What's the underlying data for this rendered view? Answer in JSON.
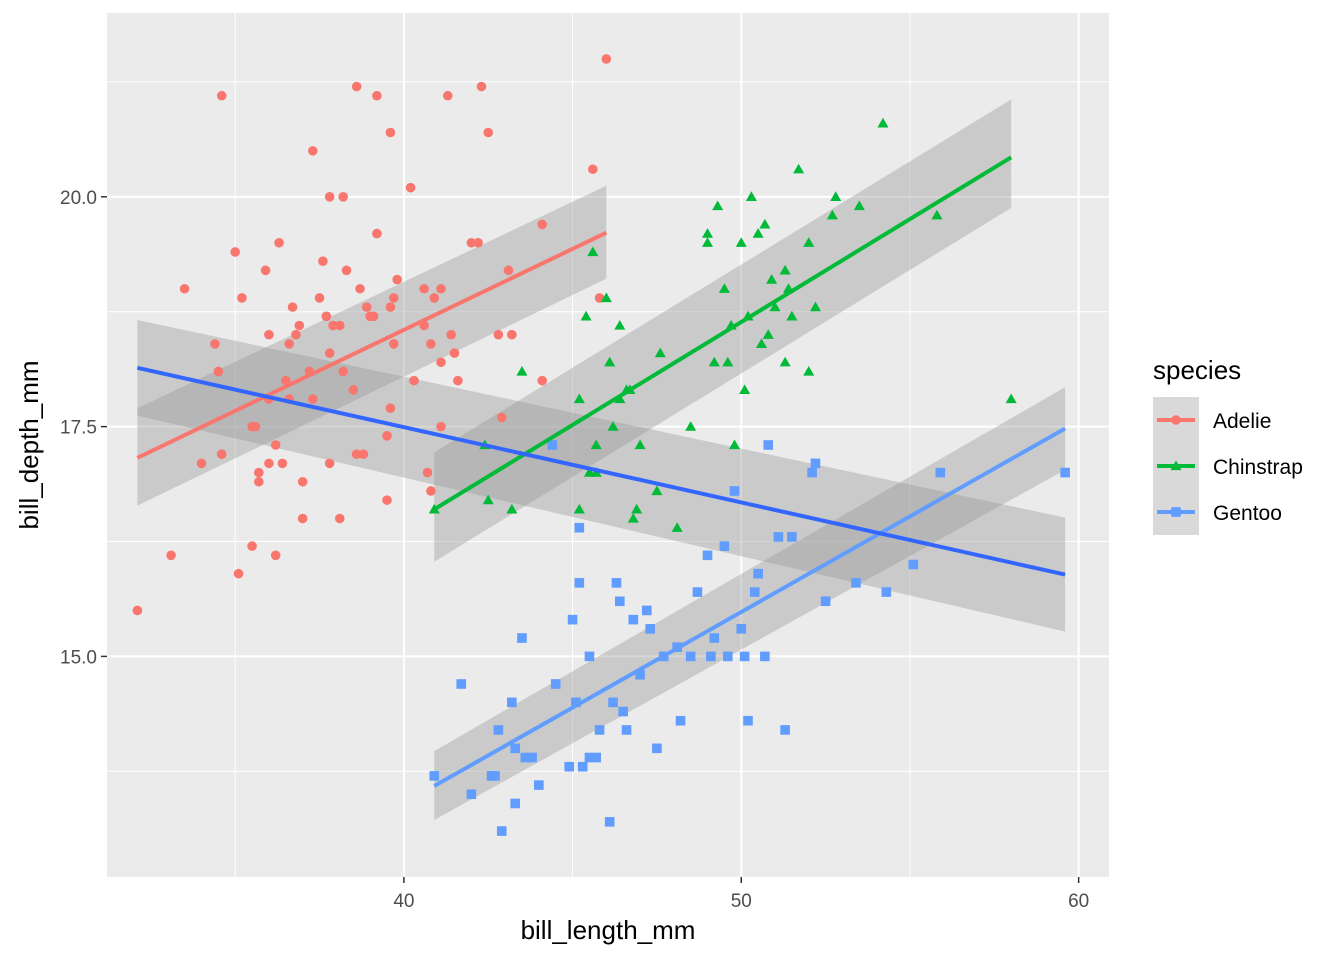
{
  "chart_data": {
    "type": "scatter",
    "xlabel": "bill_length_mm",
    "ylabel": "bill_depth_mm",
    "xlim": [
      31.2,
      60.9
    ],
    "ylim": [
      12.6,
      22.0
    ],
    "x_ticks": [
      40,
      50,
      60
    ],
    "x_tick_labels": [
      "40",
      "50",
      "60"
    ],
    "y_ticks": [
      15.0,
      17.5,
      20.0
    ],
    "y_tick_labels": [
      "15.0",
      "17.5",
      "20.0"
    ],
    "x_minor_ticks": [
      35,
      45,
      55
    ],
    "y_minor_ticks": [
      13.75,
      16.25,
      18.75,
      21.25
    ],
    "grid": true,
    "legend": {
      "title": "species",
      "position": "right"
    },
    "series": [
      {
        "name": "Adelie",
        "color": "#F8766D",
        "marker": "circle",
        "fit": {
          "x": [
            32.1,
            46.0
          ],
          "y": [
            17.16,
            19.61
          ],
          "ci_low": [
            16.64,
            19.11
          ],
          "ci_high": [
            17.7,
            20.12
          ]
        },
        "points": [
          [
            32.1,
            15.5
          ],
          [
            33.1,
            16.1
          ],
          [
            33.5,
            19.0
          ],
          [
            34.0,
            17.1
          ],
          [
            34.4,
            18.4
          ],
          [
            34.5,
            18.1
          ],
          [
            34.6,
            21.1
          ],
          [
            34.6,
            17.2
          ],
          [
            35.0,
            19.4
          ],
          [
            35.1,
            15.9
          ],
          [
            35.2,
            18.9
          ],
          [
            35.5,
            17.5
          ],
          [
            35.5,
            16.2
          ],
          [
            35.6,
            17.5
          ],
          [
            35.7,
            16.9
          ],
          [
            35.7,
            17.0
          ],
          [
            35.9,
            19.2
          ],
          [
            36.0,
            17.1
          ],
          [
            36.0,
            18.5
          ],
          [
            36.0,
            17.8
          ],
          [
            36.2,
            17.3
          ],
          [
            36.2,
            16.1
          ],
          [
            36.3,
            19.5
          ],
          [
            36.4,
            17.1
          ],
          [
            36.5,
            18.0
          ],
          [
            36.6,
            17.8
          ],
          [
            36.6,
            18.4
          ],
          [
            36.7,
            18.8
          ],
          [
            36.8,
            18.5
          ],
          [
            36.9,
            18.6
          ],
          [
            37.0,
            16.9
          ],
          [
            37.0,
            16.5
          ],
          [
            37.2,
            18.1
          ],
          [
            37.3,
            17.8
          ],
          [
            37.3,
            20.5
          ],
          [
            37.5,
            18.9
          ],
          [
            37.6,
            19.3
          ],
          [
            37.7,
            18.7
          ],
          [
            37.8,
            18.3
          ],
          [
            37.8,
            20.0
          ],
          [
            37.8,
            17.1
          ],
          [
            37.9,
            18.6
          ],
          [
            38.1,
            18.6
          ],
          [
            38.1,
            16.5
          ],
          [
            38.2,
            18.1
          ],
          [
            38.2,
            20.0
          ],
          [
            38.3,
            19.2
          ],
          [
            38.5,
            17.9
          ],
          [
            38.6,
            21.2
          ],
          [
            38.6,
            17.2
          ],
          [
            38.7,
            19.0
          ],
          [
            38.8,
            17.2
          ],
          [
            38.9,
            18.8
          ],
          [
            39.0,
            18.7
          ],
          [
            39.1,
            18.7
          ],
          [
            39.2,
            19.6
          ],
          [
            39.2,
            21.1
          ],
          [
            39.5,
            17.4
          ],
          [
            39.5,
            16.7
          ],
          [
            39.6,
            17.7
          ],
          [
            39.6,
            18.8
          ],
          [
            39.6,
            20.7
          ],
          [
            39.7,
            18.4
          ],
          [
            39.7,
            18.9
          ],
          [
            39.8,
            19.1
          ],
          [
            40.2,
            20.1
          ],
          [
            40.3,
            18.0
          ],
          [
            40.6,
            18.6
          ],
          [
            40.6,
            19.0
          ],
          [
            40.8,
            18.4
          ],
          [
            40.9,
            18.9
          ],
          [
            41.1,
            18.2
          ],
          [
            41.1,
            19.0
          ],
          [
            41.1,
            17.5
          ],
          [
            41.3,
            21.1
          ],
          [
            41.4,
            18.5
          ],
          [
            41.5,
            18.3
          ],
          [
            41.6,
            18.0
          ],
          [
            42.0,
            19.5
          ],
          [
            42.2,
            19.5
          ],
          [
            42.3,
            21.2
          ],
          [
            42.5,
            20.7
          ],
          [
            42.8,
            18.5
          ],
          [
            42.9,
            17.6
          ],
          [
            43.1,
            19.2
          ],
          [
            43.2,
            18.5
          ],
          [
            44.1,
            18.0
          ],
          [
            44.1,
            19.7
          ],
          [
            45.6,
            20.3
          ],
          [
            45.8,
            18.9
          ],
          [
            46.0,
            21.5
          ],
          [
            40.7,
            17.0
          ],
          [
            40.8,
            16.8
          ]
        ]
      },
      {
        "name": "Chinstrap",
        "color": "#00BA38",
        "marker": "triangle",
        "fit": {
          "x": [
            40.9,
            58.0
          ],
          "y": [
            16.6,
            20.43
          ],
          "ci_low": [
            16.03,
            19.88
          ],
          "ci_high": [
            17.22,
            21.06
          ]
        },
        "points": [
          [
            40.9,
            16.6
          ],
          [
            42.4,
            17.3
          ],
          [
            42.5,
            16.7
          ],
          [
            43.2,
            16.6
          ],
          [
            43.5,
            18.1
          ],
          [
            45.2,
            17.8
          ],
          [
            45.2,
            16.6
          ],
          [
            45.4,
            18.7
          ],
          [
            45.5,
            17.0
          ],
          [
            45.6,
            19.4
          ],
          [
            45.7,
            17.3
          ],
          [
            45.7,
            17.0
          ],
          [
            46.0,
            18.9
          ],
          [
            46.1,
            18.2
          ],
          [
            46.2,
            17.5
          ],
          [
            46.4,
            18.6
          ],
          [
            46.4,
            17.8
          ],
          [
            46.6,
            17.9
          ],
          [
            46.7,
            17.9
          ],
          [
            46.8,
            16.5
          ],
          [
            46.9,
            16.6
          ],
          [
            47.0,
            17.3
          ],
          [
            47.5,
            16.8
          ],
          [
            47.6,
            18.3
          ],
          [
            48.1,
            16.4
          ],
          [
            48.5,
            17.5
          ],
          [
            49.0,
            19.6
          ],
          [
            49.0,
            19.5
          ],
          [
            49.2,
            18.2
          ],
          [
            49.3,
            19.9
          ],
          [
            49.5,
            19.0
          ],
          [
            49.6,
            18.2
          ],
          [
            49.7,
            18.6
          ],
          [
            49.8,
            17.3
          ],
          [
            50.0,
            19.5
          ],
          [
            50.1,
            17.9
          ],
          [
            50.2,
            18.7
          ],
          [
            50.3,
            20.0
          ],
          [
            50.5,
            19.6
          ],
          [
            50.6,
            18.4
          ],
          [
            50.7,
            19.7
          ],
          [
            50.8,
            18.5
          ],
          [
            50.9,
            19.1
          ],
          [
            51.0,
            18.8
          ],
          [
            51.3,
            18.2
          ],
          [
            51.3,
            19.2
          ],
          [
            51.4,
            19.0
          ],
          [
            51.5,
            18.7
          ],
          [
            51.7,
            20.3
          ],
          [
            52.0,
            19.5
          ],
          [
            52.0,
            18.1
          ],
          [
            52.2,
            18.8
          ],
          [
            52.7,
            19.8
          ],
          [
            52.8,
            20.0
          ],
          [
            53.5,
            19.9
          ],
          [
            54.2,
            20.8
          ],
          [
            55.8,
            19.8
          ],
          [
            58.0,
            17.8
          ]
        ]
      },
      {
        "name": "Gentoo",
        "color": "#619CFF",
        "marker": "square",
        "fit": {
          "x": [
            40.9,
            59.6
          ],
          "y": [
            13.59,
            17.48
          ],
          "ci_low": [
            13.22,
            17.03
          ],
          "ci_high": [
            13.97,
            17.93
          ]
        },
        "points": [
          [
            40.9,
            13.7
          ],
          [
            41.7,
            14.7
          ],
          [
            42.0,
            13.5
          ],
          [
            42.6,
            13.7
          ],
          [
            42.7,
            13.7
          ],
          [
            42.8,
            14.2
          ],
          [
            42.9,
            13.1
          ],
          [
            43.2,
            14.5
          ],
          [
            43.3,
            13.4
          ],
          [
            43.3,
            14.0
          ],
          [
            43.5,
            15.2
          ],
          [
            43.6,
            13.9
          ],
          [
            43.8,
            13.9
          ],
          [
            44.0,
            13.6
          ],
          [
            44.4,
            17.3
          ],
          [
            44.5,
            14.7
          ],
          [
            44.9,
            13.8
          ],
          [
            45.0,
            15.4
          ],
          [
            45.1,
            14.5
          ],
          [
            45.2,
            16.4
          ],
          [
            45.2,
            15.8
          ],
          [
            45.3,
            13.8
          ],
          [
            45.5,
            13.9
          ],
          [
            45.5,
            15.0
          ],
          [
            45.7,
            13.9
          ],
          [
            45.8,
            14.2
          ],
          [
            46.1,
            13.2
          ],
          [
            46.2,
            14.5
          ],
          [
            46.3,
            15.8
          ],
          [
            46.4,
            15.6
          ],
          [
            46.5,
            14.4
          ],
          [
            46.6,
            14.2
          ],
          [
            46.8,
            15.4
          ],
          [
            47.0,
            14.8
          ],
          [
            47.2,
            15.5
          ],
          [
            47.3,
            15.3
          ],
          [
            47.5,
            14.0
          ],
          [
            47.7,
            15.0
          ],
          [
            48.1,
            15.1
          ],
          [
            48.2,
            14.3
          ],
          [
            48.5,
            15.0
          ],
          [
            48.7,
            15.7
          ],
          [
            49.0,
            16.1
          ],
          [
            49.1,
            15.0
          ],
          [
            49.2,
            15.2
          ],
          [
            49.5,
            16.2
          ],
          [
            49.6,
            15.0
          ],
          [
            49.8,
            16.8
          ],
          [
            50.0,
            15.3
          ],
          [
            50.1,
            15.0
          ],
          [
            50.2,
            14.3
          ],
          [
            50.4,
            15.7
          ],
          [
            50.5,
            15.9
          ],
          [
            50.7,
            15.0
          ],
          [
            50.8,
            17.3
          ],
          [
            51.1,
            16.3
          ],
          [
            51.3,
            14.2
          ],
          [
            51.5,
            16.3
          ],
          [
            52.1,
            17.0
          ],
          [
            52.2,
            17.1
          ],
          [
            52.5,
            15.6
          ],
          [
            53.4,
            15.8
          ],
          [
            54.3,
            15.7
          ],
          [
            55.1,
            16.0
          ],
          [
            55.9,
            17.0
          ],
          [
            59.6,
            17.0
          ]
        ]
      },
      {
        "name": "",
        "color": "#3366FF",
        "marker": "none",
        "fit": {
          "x": [
            32.1,
            59.6
          ],
          "y": [
            18.14,
            15.89
          ],
          "ci_low": [
            17.62,
            15.27
          ],
          "ci_high": [
            18.66,
            16.51
          ]
        },
        "points": []
      }
    ]
  }
}
